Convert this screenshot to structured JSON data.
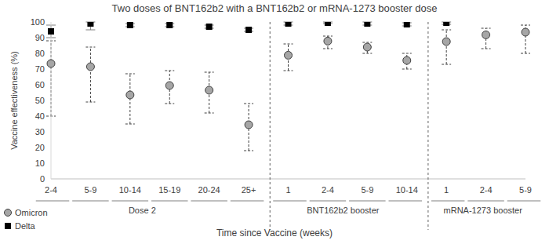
{
  "chart_data": {
    "type": "scatter",
    "title": "Two doses of BNT162b2 with a BNT162b2 or mRNA-1273 booster dose",
    "x_label": "Time since Vaccine (weeks)",
    "y_label": "Vaccine effectiveness (%)",
    "categories": [
      "2-4",
      "5-9",
      "10-14",
      "15-19",
      "20-24",
      "25+",
      "1",
      "2-4",
      "5-9",
      "10-14",
      "1",
      "2-4",
      "5-9"
    ],
    "category_groups": [
      "Dose 2",
      "Dose 2",
      "Dose 2",
      "Dose 2",
      "Dose 2",
      "Dose 2",
      "BNT162b2 booster",
      "BNT162b2 booster",
      "BNT162b2 booster",
      "BNT162b2 booster",
      "mRNA-1273 booster",
      "mRNA-1273 booster",
      "mRNA-1273 booster"
    ],
    "series": [
      {
        "name": "Omicron",
        "color": "#a6a6a6",
        "marker": "circle",
        "values": [
          73.5,
          71.5,
          53.5,
          59.5,
          56.5,
          34.5,
          78.8,
          87.8,
          84,
          75.5,
          87.5,
          91.8,
          93.5
        ],
        "lower": [
          40,
          49,
          35,
          48,
          42,
          18,
          69,
          83,
          80,
          70,
          73,
          83,
          80
        ],
        "upper": [
          88,
          84,
          67,
          69,
          68,
          48,
          86,
          91,
          87,
          80,
          95,
          96,
          98
        ]
      },
      {
        "name": "Delta",
        "color": "#000000",
        "marker": "square",
        "values": [
          94,
          99,
          98,
          98,
          97,
          95,
          99,
          99.5,
          99,
          98.5,
          99.5,
          null,
          null
        ],
        "lower": [
          90,
          95,
          97,
          97,
          96,
          94,
          98,
          99,
          98,
          97.5,
          98.5,
          null,
          null
        ],
        "upper": [
          98,
          100,
          99,
          99,
          98,
          96,
          100,
          100,
          100,
          99.5,
          100,
          null,
          null
        ]
      }
    ],
    "ylim": [
      0,
      100
    ],
    "yticks": [
      0,
      10,
      20,
      30,
      40,
      50,
      60,
      70,
      80,
      90,
      100
    ],
    "grid": false,
    "legend": "bottom left"
  }
}
